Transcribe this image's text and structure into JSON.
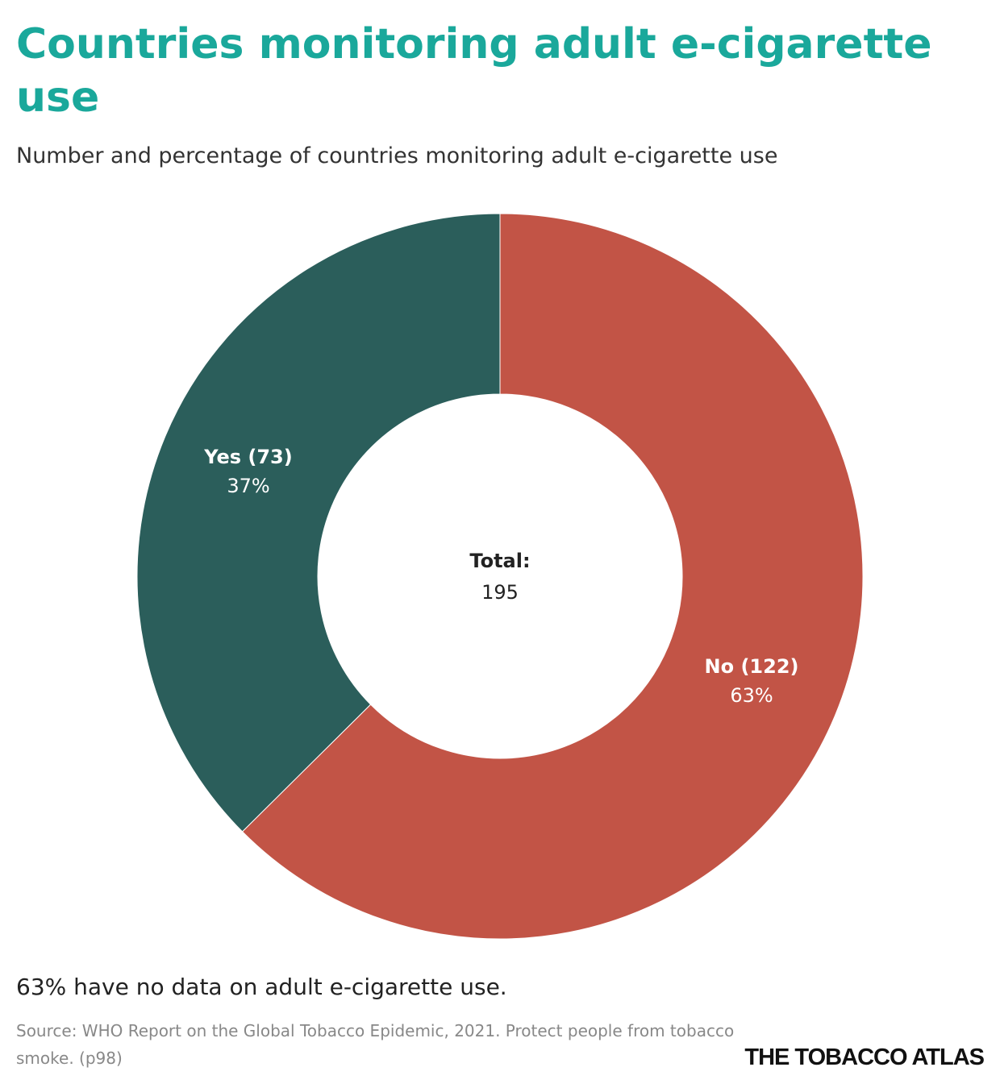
{
  "chart_data": {
    "type": "donut",
    "title": "Countries monitoring adult e-cigarette use",
    "subtitle": "Number and percentage of countries monitoring adult e-cigarette use",
    "categories": [
      "Yes (73)",
      "No (122)"
    ],
    "values": [
      73,
      122
    ],
    "percent_labels": [
      "37%",
      "63%"
    ],
    "colors": [
      "#2b5e5b",
      "#c25446"
    ],
    "total_label": "Total:",
    "total": 195,
    "note": "63% have no data on adult e-cigarette use.",
    "source": "Source: WHO Report on the Global Tobacco Epidemic, 2021. Protect people from tobacco smoke. (p98)",
    "brand": "THE TOBACCO ATLAS"
  }
}
